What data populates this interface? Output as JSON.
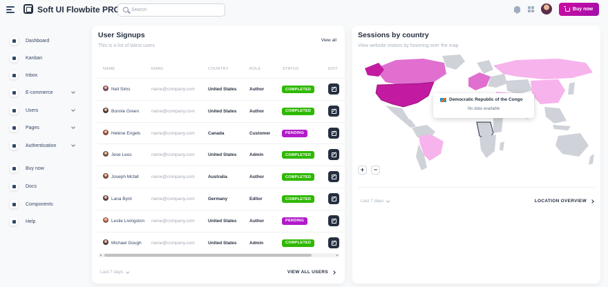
{
  "header": {
    "brand": "Soft UI Flowbite PRO",
    "search_placeholder": "Search",
    "buy_now": "Buy now"
  },
  "sidebar": {
    "items": [
      {
        "label": "Dashboard",
        "icon": "dashboard-icon",
        "chevron": false
      },
      {
        "label": "Kanban",
        "icon": "kanban-icon",
        "chevron": false
      },
      {
        "label": "Inbox",
        "icon": "inbox-icon",
        "chevron": false
      },
      {
        "label": "E-commerce",
        "icon": "cart-icon",
        "chevron": true
      },
      {
        "label": "Users",
        "icon": "users-icon",
        "chevron": true
      },
      {
        "label": "Pages",
        "icon": "pages-icon",
        "chevron": true
      },
      {
        "label": "Authentication",
        "icon": "lock-icon",
        "chevron": true
      },
      {
        "label": "Buy now",
        "icon": "bag-icon",
        "chevron": false
      },
      {
        "label": "Docs",
        "icon": "docs-icon",
        "chevron": false
      },
      {
        "label": "Components",
        "icon": "components-icon",
        "chevron": false
      },
      {
        "label": "Help",
        "icon": "help-icon",
        "chevron": false
      }
    ]
  },
  "signups": {
    "title": "User Signups",
    "subtitle": "This is a list of latest users",
    "view_all": "View all",
    "columns": [
      "Name",
      "Email",
      "Country",
      "Role",
      "Status",
      "Edit"
    ],
    "rows": [
      {
        "name": "Neil Sims",
        "email": "name@company.com",
        "country": "United States",
        "role": "Author",
        "status": "COMPLETED"
      },
      {
        "name": "Bonnie Green",
        "email": "name@company.com",
        "country": "United States",
        "role": "Author",
        "status": "COMPLETED"
      },
      {
        "name": "Helene Engels",
        "email": "name@company.com",
        "country": "Canada",
        "role": "Customer",
        "status": "PENDING"
      },
      {
        "name": "Jese Leos",
        "email": "name@company.com",
        "country": "United States",
        "role": "Admin",
        "status": "COMPLETED"
      },
      {
        "name": "Joseph Mcfall",
        "email": "name@company.com",
        "country": "Australia",
        "role": "Author",
        "status": "COMPLETED"
      },
      {
        "name": "Lana Byrd",
        "email": "name@company.com",
        "country": "Germany",
        "role": "Editor",
        "status": "COMPLETED"
      },
      {
        "name": "Leslie Livingston",
        "email": "name@company.com",
        "country": "United States",
        "role": "Author",
        "status": "PENDING"
      },
      {
        "name": "Michael Gough",
        "email": "name@company.com",
        "country": "United States",
        "role": "Admin",
        "status": "COMPLETED"
      }
    ],
    "period": "Last 7 days",
    "footer_link": "VIEW ALL USERS"
  },
  "sessions": {
    "title": "Sessions by country",
    "subtitle": "View website visitors by hovering over the map",
    "zoom_in": "+",
    "zoom_out": "−",
    "tooltip_country": "Democratic Republic of the Congo",
    "tooltip_value": "No data available",
    "period": "Last 7 days",
    "footer_link": "LOCATION OVERVIEW"
  },
  "colors": {
    "accent": "#cb0c9f",
    "completed": "#2fb800",
    "pending": "#b21bc9",
    "map_high": "#c21aa0",
    "map_mid": "#e06fd0",
    "map_low": "#f7b3ec",
    "map_none": "#cfd2d8"
  }
}
